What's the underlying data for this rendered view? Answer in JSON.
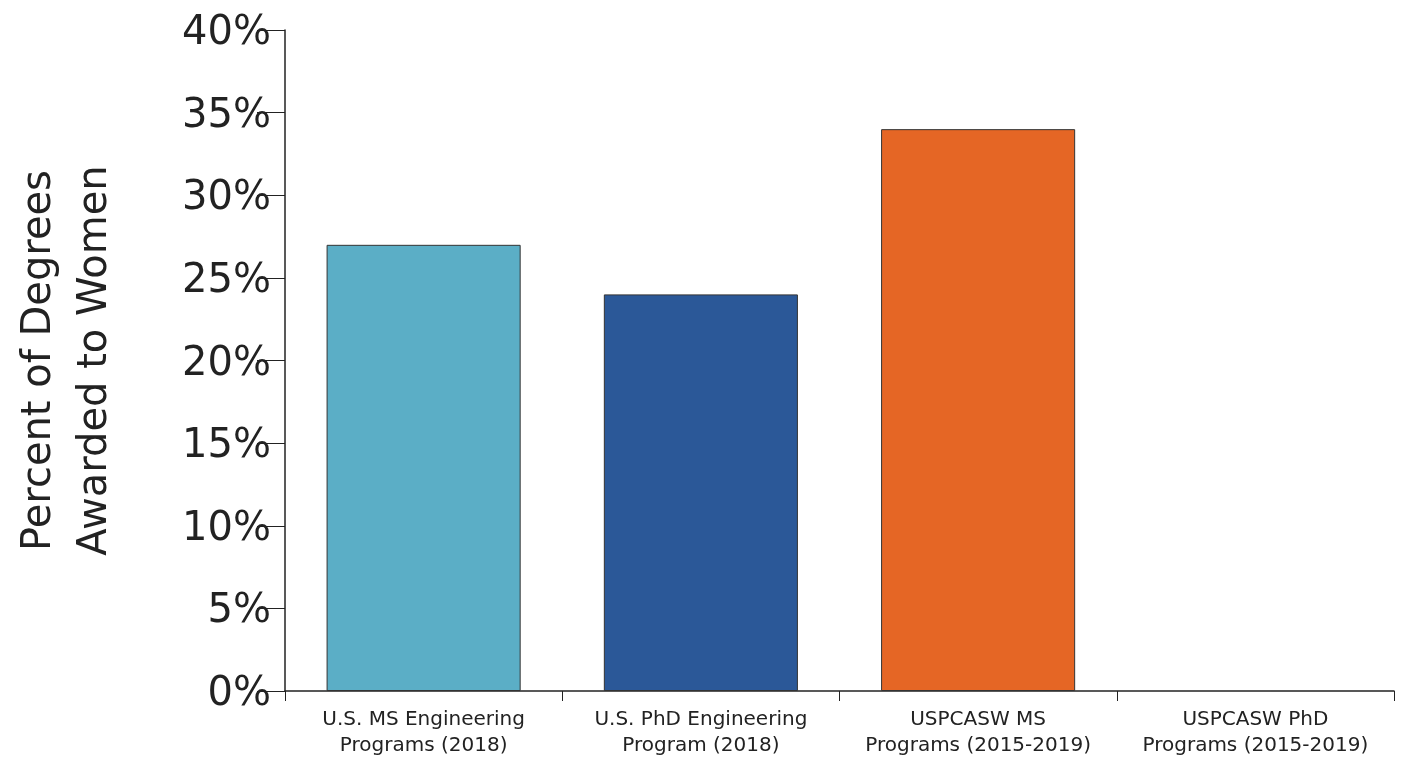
{
  "chart_data": {
    "type": "bar",
    "ylabel": "Percent of Degrees\nAwarded to Women",
    "categories": [
      "U.S. MS Engineering\nPrograms (2018)",
      "U.S. PhD Engineering\nProgram (2018)",
      "USPCASW MS\nPrograms (2015-2019)",
      "USPCASW PhD\nPrograms (2015-2019)"
    ],
    "values": [
      27,
      24,
      34,
      null
    ],
    "colors": [
      "#5baec6",
      "#2b5898",
      "#e56625",
      "#888888"
    ],
    "ylim": [
      0,
      40
    ],
    "yticks": [
      {
        "value": 0,
        "label": "0%"
      },
      {
        "value": 5,
        "label": "5%"
      },
      {
        "value": 10,
        "label": "10%"
      },
      {
        "value": 15,
        "label": "15%"
      },
      {
        "value": 20,
        "label": "20%"
      },
      {
        "value": 25,
        "label": "25%"
      },
      {
        "value": 30,
        "label": "30%"
      },
      {
        "value": 35,
        "label": "35%"
      },
      {
        "value": 40,
        "label": "40%"
      }
    ],
    "grid": false
  }
}
